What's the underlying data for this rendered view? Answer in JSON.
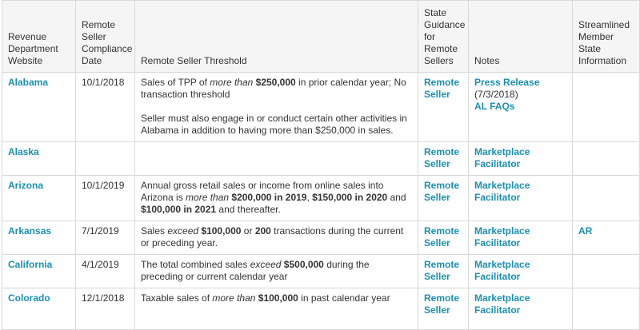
{
  "columns": {
    "website": "Revenue Department Website",
    "date": "Remote Seller Compliance Date",
    "threshold": "Remote Seller Threshold",
    "guidance": "State Guidance for Remote Sellers",
    "notes": "Notes",
    "streamlined": "Streamlined Member State Information"
  },
  "rows": {
    "alabama": {
      "state": "Alabama",
      "date": "10/1/2018",
      "t1_a": "Sales of TPP of ",
      "t1_b": "more than",
      "t1_c": " ",
      "t1_d": "$250,000",
      "t1_e": " in prior calendar year; No transaction threshold",
      "t2": "Seller must also engage in or conduct certain other activities in Alabama in addition to having more than $250,000 in sales.",
      "guidance_1": "Remote",
      "guidance_2": "Seller",
      "note_link": "Press Release",
      "note_date": "(7/3/2018)",
      "note_link2": "AL FAQs",
      "streamlined": ""
    },
    "alaska": {
      "state": "Alaska",
      "date": "",
      "guidance_1": "Remote",
      "guidance_2": "Seller",
      "note_1": "Marketplace",
      "note_2": "Facilitator",
      "streamlined": ""
    },
    "arizona": {
      "state": "Arizona",
      "date": "10/1/2019",
      "t_a": "Annual gross retail sales or income from online sales into Arizona is ",
      "t_b": "more than",
      "t_c": " ",
      "t_d": "$200,000 in 2019",
      "t_e": ", ",
      "t_f": "$150,000 in 2020",
      "t_g": " and ",
      "t_h": "$100,000 in 2021",
      "t_i": " and thereafter.",
      "guidance_1": "Remote",
      "guidance_2": "Seller",
      "note_1": "Marketplace",
      "note_2": "Facilitator",
      "streamlined": ""
    },
    "arkansas": {
      "state": "Arkansas",
      "date": "7/1/2019",
      "t_a": "Sales ",
      "t_b": "exceed",
      "t_c": " ",
      "t_d": "$100,000",
      "t_e": " or ",
      "t_f": "200",
      "t_g": " transactions during the current or preceding year.",
      "guidance_1": "Remote",
      "guidance_2": "Seller",
      "note_1": "Marketplace",
      "note_2": "Facilitator",
      "streamlined": "AR"
    },
    "california": {
      "state": "California",
      "date": "4/1/2019",
      "t_a": "The total combined sales ",
      "t_b": "exceed",
      "t_c": " ",
      "t_d": "$500,000",
      "t_e": " during the preceding or current calendar year",
      "guidance_1": "Remote",
      "guidance_2": "Seller",
      "note_1": "Marketplace",
      "note_2": "Facilitator",
      "streamlined": ""
    },
    "colorado": {
      "state": "Colorado",
      "date": "12/1/2018",
      "t_a": "Taxable sales of ",
      "t_b": "more than",
      "t_c": " ",
      "t_d": "$100,000",
      "t_e": " in past calendar year",
      "guidance_1": "Remote",
      "guidance_2": "Seller",
      "note_1": "Marketplace",
      "note_2": "Facilitator",
      "streamlined": ""
    }
  }
}
